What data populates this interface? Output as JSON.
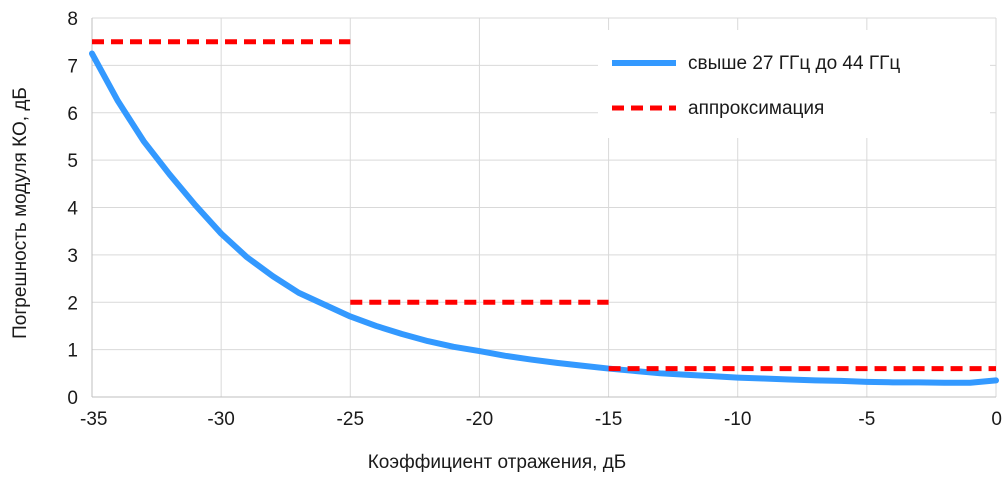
{
  "chart_data": {
    "type": "line",
    "title": "",
    "xlabel": "Коэффициент отражения, дБ",
    "ylabel": "Погрешность модуля  КО, дБ",
    "xlim": [
      -35,
      0
    ],
    "ylim": [
      0,
      8
    ],
    "x_ticks": [
      -35,
      -30,
      -25,
      -20,
      -15,
      -10,
      -5,
      0
    ],
    "y_ticks": [
      0,
      1,
      2,
      3,
      4,
      5,
      6,
      7,
      8
    ],
    "grid": true,
    "legend_position": "top-right",
    "series": [
      {
        "name": "свыше 27 ГГц до 44 ГГц",
        "style": "solid",
        "color": "#3399ff",
        "x": [
          -35,
          -34,
          -33,
          -32,
          -31,
          -30,
          -29,
          -28,
          -27,
          -26,
          -25,
          -24,
          -23,
          -22,
          -21,
          -20,
          -19,
          -18,
          -17,
          -16,
          -15,
          -14,
          -13,
          -12,
          -11,
          -10,
          -9,
          -8,
          -7,
          -6,
          -5,
          -4,
          -3,
          -2,
          -1,
          0
        ],
        "y": [
          7.25,
          6.25,
          5.4,
          4.7,
          4.05,
          3.45,
          2.95,
          2.55,
          2.2,
          1.95,
          1.7,
          1.5,
          1.33,
          1.18,
          1.06,
          0.97,
          0.87,
          0.79,
          0.72,
          0.66,
          0.6,
          0.55,
          0.5,
          0.47,
          0.44,
          0.41,
          0.39,
          0.37,
          0.35,
          0.34,
          0.32,
          0.31,
          0.31,
          0.3,
          0.3,
          0.35
        ]
      },
      {
        "name": "аппроксимация",
        "style": "dashed",
        "color": "#ff0000",
        "segments": [
          {
            "x": [
              -35,
              -25
            ],
            "y": [
              7.5,
              7.5
            ]
          },
          {
            "x": [
              -25,
              -15
            ],
            "y": [
              2.0,
              2.0
            ]
          },
          {
            "x": [
              -15,
              0
            ],
            "y": [
              0.6,
              0.6
            ]
          }
        ]
      }
    ]
  }
}
